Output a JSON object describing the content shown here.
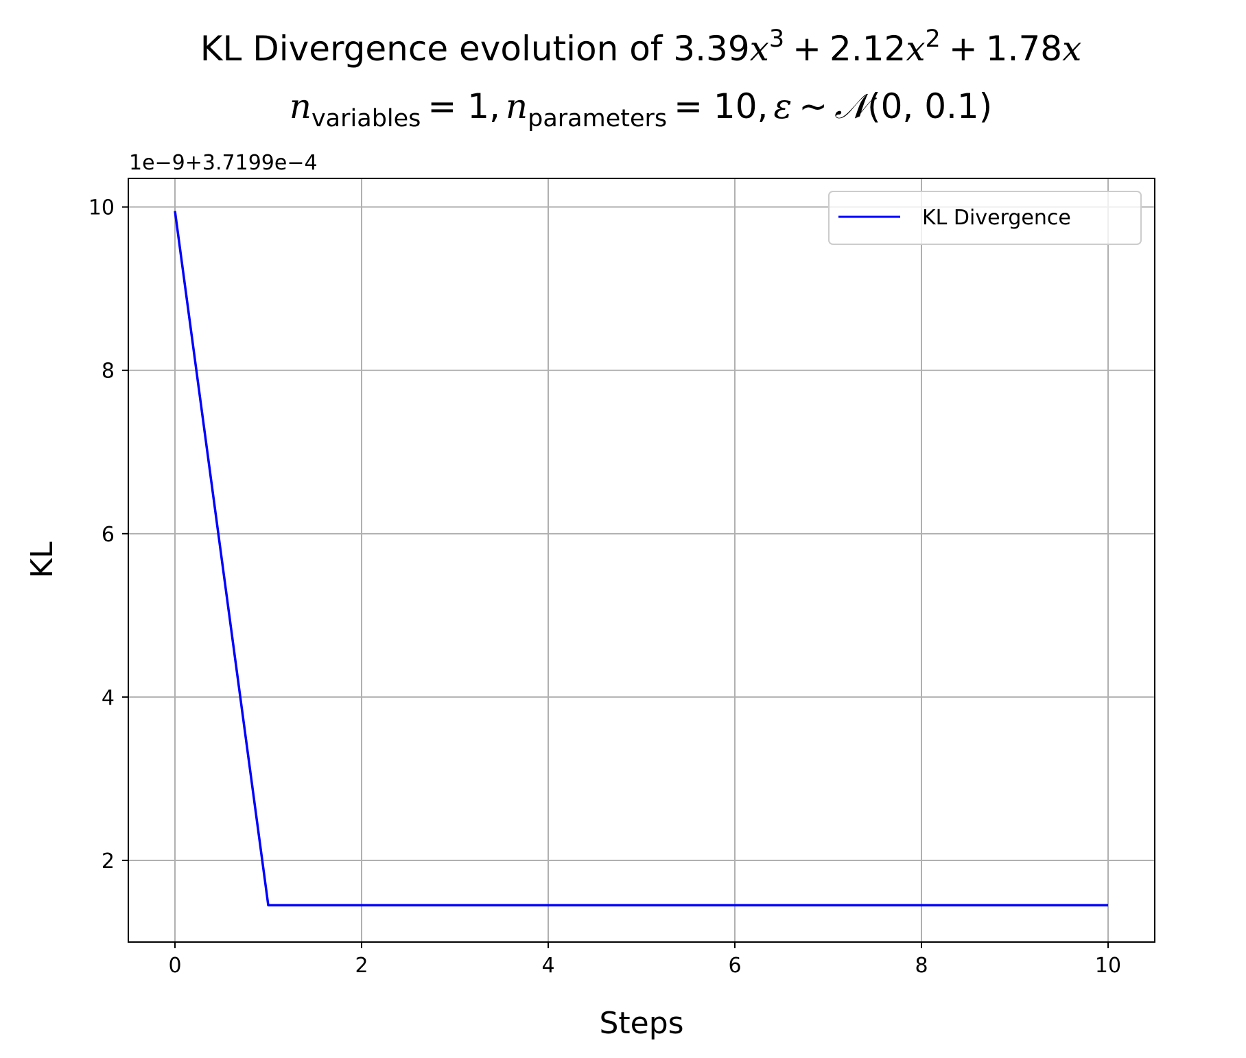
{
  "chart_data": {
    "type": "line",
    "title_line1": {
      "prefix": "KL Divergence evolution of ",
      "c3": "3.39",
      "c2": "2.12",
      "c1": "1.78",
      "var": "x",
      "plus": "+",
      "exp3": "3",
      "exp2": "2"
    },
    "title_line2": {
      "n": "n",
      "sub_vars": "variables",
      "eq1": "= 1,",
      "sub_params": "parameters",
      "eq2": "= 10,",
      "epsilon": "ε",
      "tilde": "~",
      "normal": "𝒩",
      "normal_args": "(0, 0.1)"
    },
    "xlabel": "Steps",
    "ylabel": "KL",
    "y_offset_label": "1e−9+3.7199e−4",
    "xlim": [
      -0.5,
      10.5
    ],
    "ylim": [
      1.0,
      10.35
    ],
    "x_ticks": [
      0,
      2,
      4,
      6,
      8,
      10
    ],
    "y_ticks": [
      2,
      4,
      6,
      8,
      10
    ],
    "grid": true,
    "legend_position": "top-right",
    "series": [
      {
        "name": "KL Divergence",
        "color": "#0000ff",
        "x": [
          0,
          1,
          2,
          3,
          4,
          5,
          6,
          7,
          8,
          9,
          10
        ],
        "y": [
          9.95,
          1.45,
          1.45,
          1.45,
          1.45,
          1.45,
          1.45,
          1.45,
          1.45,
          1.45,
          1.45
        ]
      }
    ]
  }
}
